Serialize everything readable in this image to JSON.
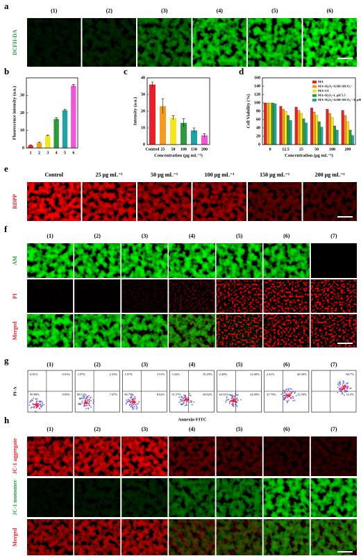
{
  "panel_labels": [
    "a",
    "b",
    "c",
    "d",
    "e",
    "f",
    "g",
    "h"
  ],
  "a": {
    "headers": [
      "(1)",
      "(2)",
      "(3)",
      "(4)",
      "(5)",
      "(6)"
    ],
    "row_label": "DCFH-DA"
  },
  "chart_data": [
    {
      "type": "bar",
      "ylabel": "Fluorescence intensity (a.u.)",
      "categories": [
        "1",
        "2",
        "3",
        "4",
        "5",
        "6"
      ],
      "values": [
        1.5,
        3,
        7,
        16.5,
        21.5,
        35.5
      ],
      "errors": [
        0.3,
        0.3,
        0.4,
        0.8,
        0.6,
        0.8
      ],
      "colors": [
        "#e8202a",
        "#f39c1f",
        "#f5e61c",
        "#2e9a3c",
        "#1fa3a3",
        "#f255d8"
      ],
      "ylim": [
        0,
        40
      ],
      "yticks": [
        0,
        10,
        20,
        30
      ]
    },
    {
      "type": "bar",
      "ylabel": "Intensity (a.u.)",
      "xlabel": "Concentration (μg mL⁻¹)",
      "categories": [
        "Control",
        "25",
        "50",
        "100",
        "150",
        "200"
      ],
      "values": [
        36,
        23,
        16,
        13,
        8.5,
        5.5
      ],
      "errors": [
        1.5,
        4.5,
        1.2,
        2.5,
        1.5,
        1.0
      ],
      "colors": [
        "#e8202a",
        "#f39c1f",
        "#f5e61c",
        "#2e9a3c",
        "#1fa3a3",
        "#f255d8"
      ],
      "ylim": [
        0,
        40
      ],
      "yticks": [
        0,
        10,
        20,
        30,
        40
      ]
    },
    {
      "type": "bar",
      "ylabel": "Cell Viability (%)",
      "xlabel": "Concentration (μg mL⁻¹)",
      "categories": [
        "0",
        "12.5",
        "25",
        "50",
        "100",
        "200"
      ],
      "series": [
        {
          "name": "MA",
          "color": "#e8202a",
          "values": [
            100,
            92,
            90,
            88,
            85,
            82
          ]
        },
        {
          "name": "MA+H₂O₂+GSH+HCO₃⁻",
          "color": "#f39c1f",
          "values": [
            100,
            85,
            82,
            78,
            75,
            70
          ]
        },
        {
          "name": "MA+LV",
          "color": "#f5e61c",
          "values": [
            100,
            80,
            75,
            70,
            65,
            55
          ]
        },
        {
          "name": "MA+H₂O₂+L pH 5.5",
          "color": "#2e9a3c",
          "values": [
            100,
            70,
            62,
            55,
            45,
            35
          ]
        },
        {
          "name": "MA+H₂O₂+GSH+HCO₃⁻+L pH 5.5",
          "color": "#1fa3a3",
          "values": [
            98,
            58,
            52,
            42,
            35,
            22
          ]
        }
      ],
      "legend": "upper right",
      "ylim": [
        0,
        160
      ],
      "yticks": [
        0,
        20,
        40,
        60,
        80,
        100,
        120,
        140,
        160
      ]
    }
  ],
  "e": {
    "headers": [
      "Control",
      "25 μg mL⁻¹",
      "50 μg mL⁻¹",
      "100 μg mL⁻¹",
      "150 μg mL⁻¹",
      "200 μg mL⁻¹"
    ],
    "row_label": "RDPP"
  },
  "f": {
    "headers": [
      "(1)",
      "(2)",
      "(3)",
      "(4)",
      "(5)",
      "(6)",
      "(7)"
    ],
    "row_labels": [
      "AM",
      "PI",
      "Merged"
    ]
  },
  "g": {
    "y_label": "PI-A",
    "x_label": "Annexin-FITC",
    "plots": [
      {
        "label": "(1)",
        "quadrants": {
          "ul": "0.01%",
          "ur": "0.01%",
          "ll": "99.88%",
          "lr": "0.05%"
        }
      },
      {
        "label": "(2)",
        "quadrants": {
          "ul": "1.87%",
          "ur": "2.33%",
          "ll": "88.13%",
          "lr": "7.67%"
        }
      },
      {
        "label": "(3)",
        "quadrants": {
          "ul": "1.57%",
          "ur": "3.51%",
          "ll": "86.79%",
          "lr": "8.62%"
        }
      },
      {
        "label": "(4)",
        "quadrants": {
          "ul": "3.32%",
          "ur": "10.29%",
          "ll": "51.57%",
          "lr": "34.82%"
        }
      },
      {
        "label": "(5)",
        "quadrants": {
          "ul": "2.49%",
          "ur": "12.60%",
          "ll": "62.91%",
          "lr": "22.09%"
        }
      },
      {
        "label": "(6)",
        "quadrants": {
          "ul": "2.21%",
          "ur": "40.50%",
          "ll": "41.79%",
          "lr": "15.59%"
        }
      },
      {
        "label": "(7)",
        "quadrants": {
          "ur": "66.7%",
          "lr": "33.3%"
        }
      }
    ]
  },
  "h": {
    "headers": [
      "(1)",
      "(2)",
      "(3)",
      "(4)",
      "(5)",
      "(6)",
      "(7)"
    ],
    "row_labels": [
      "JC-1 aggregate",
      "JC-1 monomer",
      "Merged"
    ]
  }
}
